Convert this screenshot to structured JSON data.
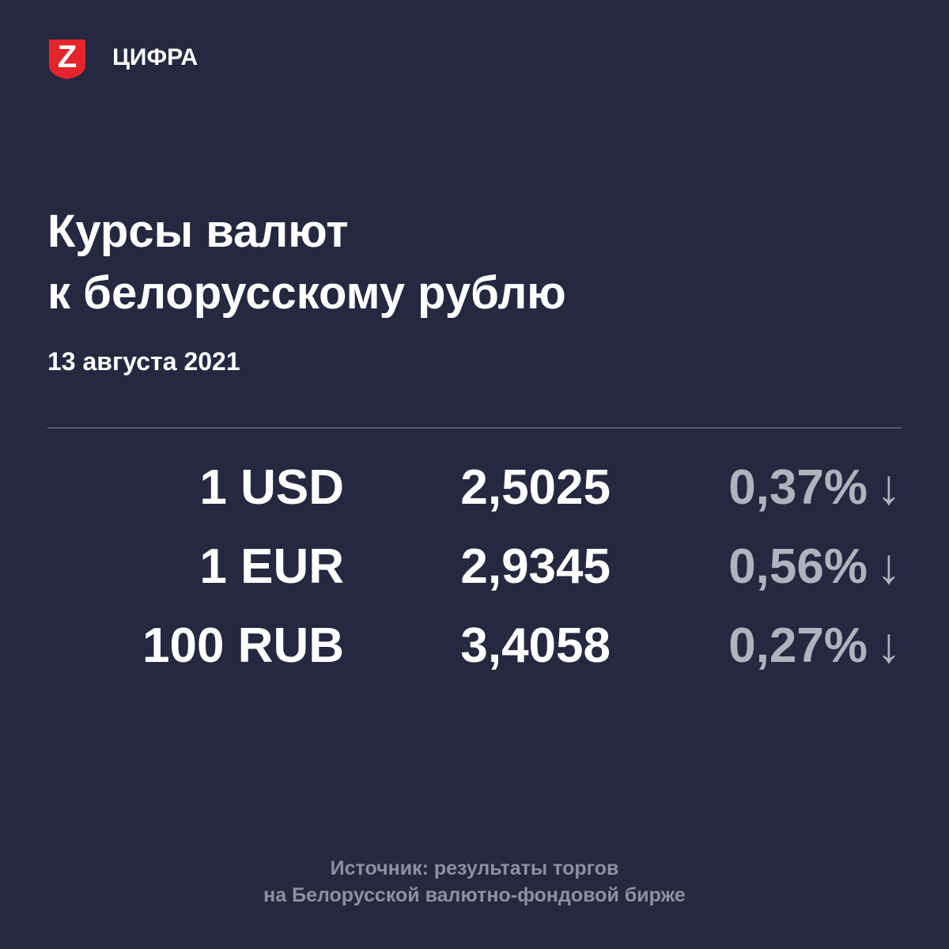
{
  "header": {
    "logo_letter": "Z",
    "brand": "ЦИФРА"
  },
  "title": [
    "Курсы валют",
    "к белорусскому рублю"
  ],
  "date": "13 августа 2021",
  "table": {
    "rows": [
      [
        "1 USD",
        "2,5025",
        "0,37%",
        "↓"
      ],
      [
        "1 EUR",
        "2,9345",
        "0,56%",
        "↓"
      ],
      [
        "100 RUB",
        "3,4058",
        "0,27%",
        "↓"
      ]
    ]
  },
  "source": [
    "Источник: результаты торгов",
    "на Белорусской валютно-фондовой бирже"
  ]
}
